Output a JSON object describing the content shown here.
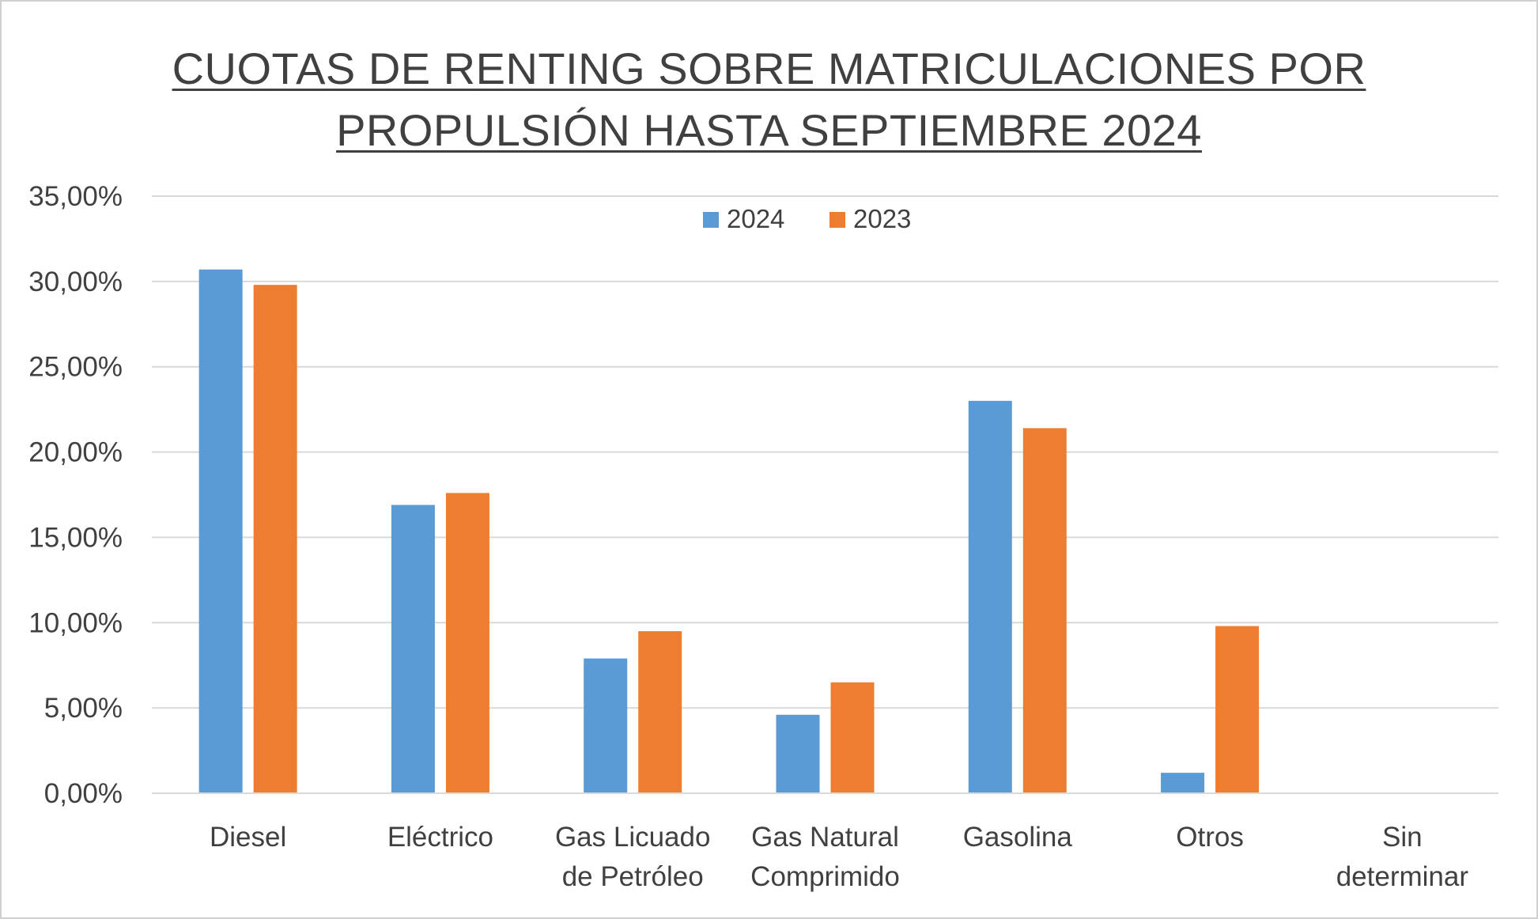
{
  "chart_data": {
    "type": "bar",
    "title": "CUOTAS DE RENTING SOBRE MATRICULACIONES POR PROPULSIÓN HASTA SEPTIEMBRE 2024",
    "title_lines": [
      "CUOTAS DE RENTING SOBRE MATRICULACIONES POR",
      "PROPULSIÓN HASTA SEPTIEMBRE 2024"
    ],
    "categories": [
      "Diesel",
      "Eléctrico",
      "Gas Licuado de Petróleo",
      "Gas Natural Comprimido",
      "Gasolina",
      "Otros",
      "Sin determinar"
    ],
    "category_lines": [
      [
        "Diesel"
      ],
      [
        "Eléctrico"
      ],
      [
        "Gas Licuado",
        "de Petróleo"
      ],
      [
        "Gas Natural",
        "Comprimido"
      ],
      [
        "Gasolina"
      ],
      [
        "Otros"
      ],
      [
        "Sin",
        "determinar"
      ]
    ],
    "series": [
      {
        "name": "2024",
        "color": "#5b9bd5",
        "values": [
          30.7,
          16.9,
          7.9,
          4.6,
          23.0,
          1.2,
          0.0
        ]
      },
      {
        "name": "2023",
        "color": "#ed7d31",
        "values": [
          29.8,
          17.6,
          9.5,
          6.5,
          21.4,
          9.8,
          0.0
        ]
      }
    ],
    "y_ticks": [
      "0,00%",
      "5,00%",
      "10,00%",
      "15,00%",
      "20,00%",
      "25,00%",
      "30,00%",
      "35,00%"
    ],
    "ylim": [
      0,
      35
    ],
    "y_step": 5,
    "xlabel": "",
    "ylabel": "",
    "grid": true,
    "legend_position": "top"
  }
}
